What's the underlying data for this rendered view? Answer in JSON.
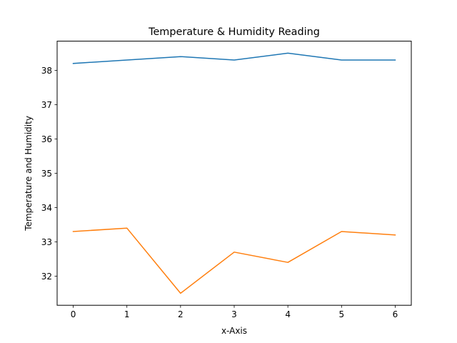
{
  "chart_data": {
    "type": "line",
    "title": "Temperature & Humidity Reading",
    "xlabel": "x-Axis",
    "ylabel": "Temperature and Humidity",
    "x": [
      0,
      1,
      2,
      3,
      4,
      5,
      6
    ],
    "xlim": [
      -0.3,
      6.3
    ],
    "ylim": [
      31.15,
      38.85
    ],
    "xticks": [
      "0",
      "1",
      "2",
      "3",
      "4",
      "5",
      "6"
    ],
    "yticks": [
      "32",
      "33",
      "34",
      "35",
      "36",
      "37",
      "38"
    ],
    "grid": false,
    "series": [
      {
        "values": [
          38.2,
          38.3,
          38.4,
          38.3,
          38.5,
          38.3,
          38.3
        ],
        "color": "#1f77b4"
      },
      {
        "values": [
          33.3,
          33.4,
          31.5,
          32.7,
          32.4,
          33.3,
          33.2
        ],
        "color": "#ff7f0e"
      }
    ]
  }
}
